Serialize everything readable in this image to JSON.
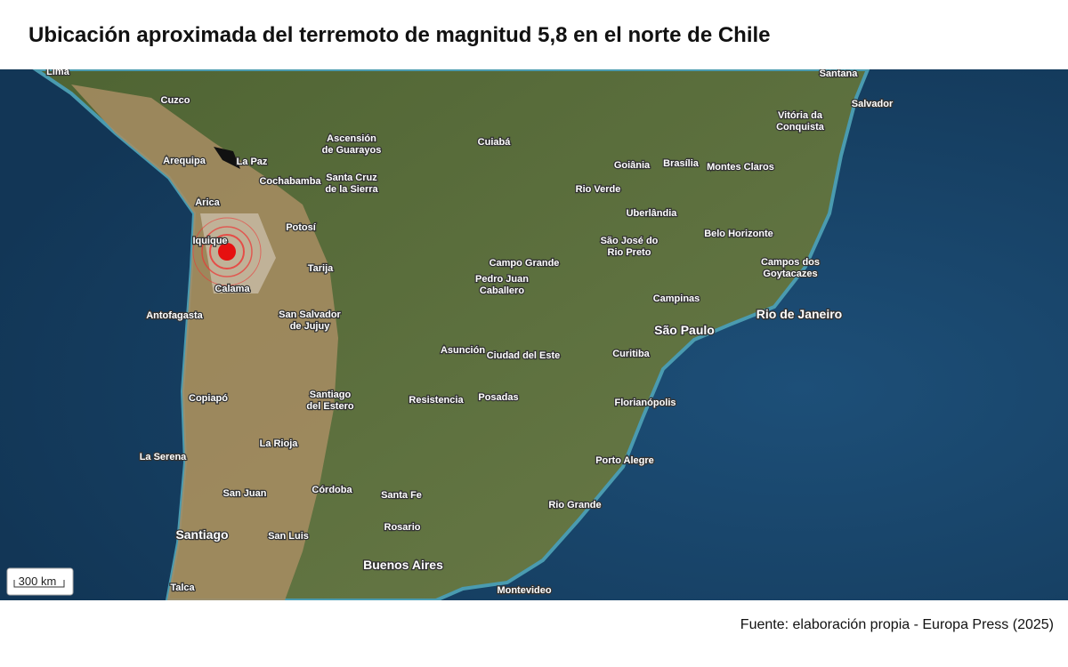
{
  "header": {
    "title": "Ubicación aproximada del terremoto de magnitud 5,8 en el norte de Chile"
  },
  "map": {
    "cities": [
      [
        "Lima"
      ],
      [
        "Cuzco"
      ],
      [
        "Arequipa"
      ],
      [
        "La Paz"
      ],
      [
        "Ascensión",
        "de Guarayos"
      ],
      [
        "Cuiabá"
      ],
      [
        "Goiânia"
      ],
      [
        "Brasília"
      ],
      [
        "Montes Claros"
      ],
      [
        "Vitória da",
        "Conquista"
      ],
      [
        "Salvador"
      ],
      [
        "Santana"
      ],
      [
        "Cochabamba"
      ],
      [
        "Santa Cruz",
        "de la Sierra"
      ],
      [
        "Rio Verde"
      ],
      [
        "Arica"
      ],
      [
        "Uberlândia"
      ],
      [
        "Belo Horizonte"
      ],
      [
        "Potosí"
      ],
      [
        "Iquique"
      ],
      [
        "São José do",
        "Rio Preto"
      ],
      [
        "Campos dos",
        "Goytacazes"
      ],
      [
        "Campo Grande"
      ],
      [
        "Tarija"
      ],
      [
        "Pedro Juan",
        "Caballero"
      ],
      [
        "Calama"
      ],
      [
        "Campinas"
      ],
      [
        "Rio de Janeiro"
      ],
      [
        "Antofagasta"
      ],
      [
        "San Salvador",
        "de Jujuy"
      ],
      [
        "São Paulo"
      ],
      [
        "Asunción"
      ],
      [
        "Ciudad del Este"
      ],
      [
        "Curitiba"
      ],
      [
        "Copiapó"
      ],
      [
        "Santiago",
        "del Estero"
      ],
      [
        "Resistencia"
      ],
      [
        "Posadas"
      ],
      [
        "Florianópolis"
      ],
      [
        "La Rioja"
      ],
      [
        "La Serena"
      ],
      [
        "Porto Alegre"
      ],
      [
        "Córdoba"
      ],
      [
        "San Juan"
      ],
      [
        "Santa Fe"
      ],
      [
        "Rio Grande"
      ],
      [
        "Rosario"
      ],
      [
        "Santiago"
      ],
      [
        "San Luis"
      ],
      [
        "Buenos Aires"
      ],
      [
        "Montevideo"
      ],
      [
        "Talca"
      ]
    ],
    "scale": "300 km"
  },
  "footer": {
    "source": "Fuente: elaboración propia - Europa Press (2025)"
  }
}
